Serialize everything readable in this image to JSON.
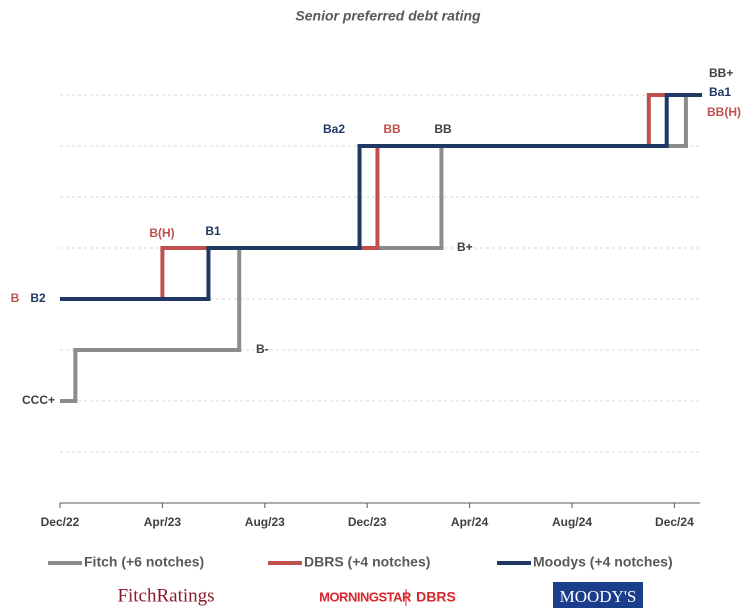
{
  "chart_data": {
    "type": "step",
    "title": "Senior preferred debt rating",
    "xlim": [
      0,
      25
    ],
    "xticks": [
      {
        "value": 0,
        "label": "Dec/22"
      },
      {
        "value": 4,
        "label": "Apr/23"
      },
      {
        "value": 8,
        "label": "Aug/23"
      },
      {
        "value": 12,
        "label": "Dec/23"
      },
      {
        "value": 16,
        "label": "Apr/24"
      },
      {
        "value": 20,
        "label": "Aug/24"
      },
      {
        "value": 24,
        "label": "Dec/24"
      }
    ],
    "ylim": [
      0,
      8
    ],
    "yticks": [
      1,
      2,
      3,
      4,
      5,
      6,
      7,
      8
    ],
    "grid": true,
    "series": [
      {
        "name": "Fitch (+6 notches)",
        "color": "#8c8c8c",
        "x": [
          0,
          0.6,
          7.0,
          14.9,
          24.45
        ],
        "values": [
          2,
          3,
          5,
          7,
          8
        ],
        "labels": [
          "CCC+",
          "B-",
          "B+",
          "BB",
          "BB+"
        ]
      },
      {
        "name": "DBRS (+4 notches)",
        "color": "#c0504d",
        "x": [
          0,
          4.0,
          12.4,
          23.0
        ],
        "values": [
          4,
          5,
          7,
          8
        ],
        "labels": [
          "B",
          "B(H)",
          "BB",
          "BB(H)"
        ]
      },
      {
        "name": "Moodys (+4 notches)",
        "color": "#1f3864",
        "x": [
          0,
          5.8,
          11.7,
          23.7
        ],
        "values": [
          4,
          5,
          7,
          8
        ],
        "labels": [
          "B2",
          "B1",
          "Ba2",
          "Ba1"
        ]
      }
    ],
    "logos": [
      "FitchRatings",
      "MORNINGSTAR",
      "DBRS",
      "MOODY'S"
    ]
  }
}
